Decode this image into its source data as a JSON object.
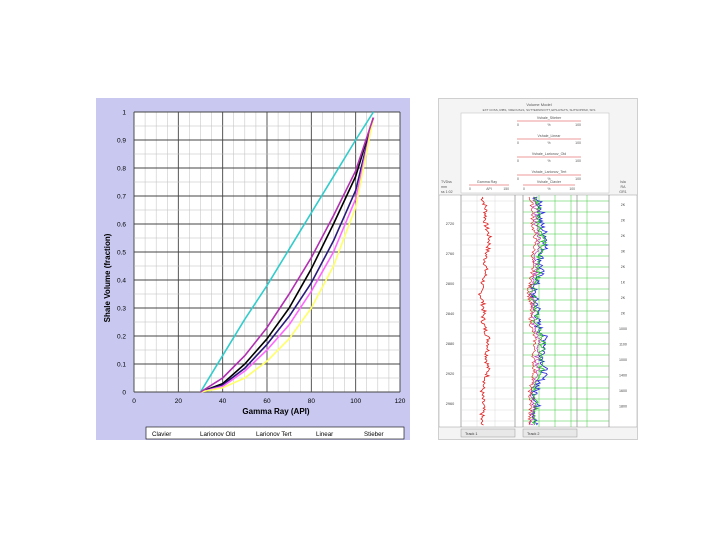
{
  "left_chart": {
    "chart_data": {
      "type": "line",
      "xlabel": "Gamma Ray (API)",
      "ylabel": "Shale Volume (fraction)",
      "xlim": [
        0,
        120
      ],
      "ylim": [
        0,
        1
      ],
      "xticks": [
        0,
        20,
        40,
        60,
        80,
        100,
        120
      ],
      "yticks": [
        0,
        0.1,
        0.2,
        0.3,
        0.4,
        0.5,
        0.6,
        0.7,
        0.8,
        0.9,
        1
      ],
      "x": [
        30,
        40,
        50,
        60,
        70,
        80,
        90,
        100,
        108
      ],
      "series": [
        {
          "name": "Clavier",
          "color": "#000000",
          "values": [
            0,
            0.03,
            0.1,
            0.19,
            0.3,
            0.44,
            0.6,
            0.77,
            0.98
          ]
        },
        {
          "name": "Larionov Old",
          "color": "#2a1a7a",
          "values": [
            0,
            0.025,
            0.085,
            0.17,
            0.27,
            0.39,
            0.54,
            0.72,
            0.98
          ]
        },
        {
          "name": "Larionov Tert",
          "color": "#ff66ff",
          "values": [
            0,
            0.02,
            0.075,
            0.15,
            0.24,
            0.36,
            0.5,
            0.69,
            0.98
          ]
        },
        {
          "name": "Linear",
          "color": "#33cccc",
          "values": [
            0,
            0.13,
            0.26,
            0.38,
            0.51,
            0.64,
            0.77,
            0.9,
            1.0
          ]
        },
        {
          "name": "Stieber",
          "color": "#ffff66",
          "values": [
            0,
            0.015,
            0.05,
            0.11,
            0.19,
            0.3,
            0.45,
            0.66,
            0.98
          ]
        },
        {
          "name": "",
          "color": "#b030b0",
          "values": [
            0,
            0.05,
            0.13,
            0.23,
            0.35,
            0.48,
            0.63,
            0.79,
            0.98
          ]
        }
      ],
      "legend_position": "bottom"
    }
  },
  "right_panel": {
    "header_title": "Volume Model",
    "header_subtitle": "EXT COSS, RIBS, VREOUSLS, SUTTERNIN/OTT, EPS-RSLTS, SHTSOPPAR, SFS",
    "tracks_header": [
      {
        "name": "Vshale_Stieber",
        "min": "0",
        "unit": "%",
        "max": "100"
      },
      {
        "name": "Vshale_Linear",
        "min": "0",
        "unit": "%",
        "max": "100"
      },
      {
        "name": "Vshale_Larionov_Old",
        "min": "0",
        "unit": "%",
        "max": "100"
      },
      {
        "name": "Vshale_Larionov_Tert",
        "min": "0",
        "unit": "%",
        "max": "100"
      }
    ],
    "depth_header": [
      "TVDss",
      "mm",
      "ss 1:02"
    ],
    "gr_header": {
      "name": "Gamma Ray",
      "min": "0",
      "unit": "API",
      "max": "150"
    },
    "vsh_header": {
      "name": "Vshale_Clavier",
      "min": "0",
      "unit": "%",
      "max": "100"
    },
    "right_header": [
      "Isla",
      "RA",
      "GR1"
    ],
    "left_depths": [
      "2720",
      "2760",
      "2800",
      "2840",
      "2880",
      "2920",
      "2960"
    ],
    "right_depths": [
      "2K",
      "2K",
      "2K",
      "3K",
      "2K",
      "1K",
      "2K",
      "2K",
      "1000",
      "1100",
      "1000",
      "1400",
      "1600",
      "1800"
    ],
    "footer": [
      "Track 1",
      "Track 2"
    ]
  }
}
